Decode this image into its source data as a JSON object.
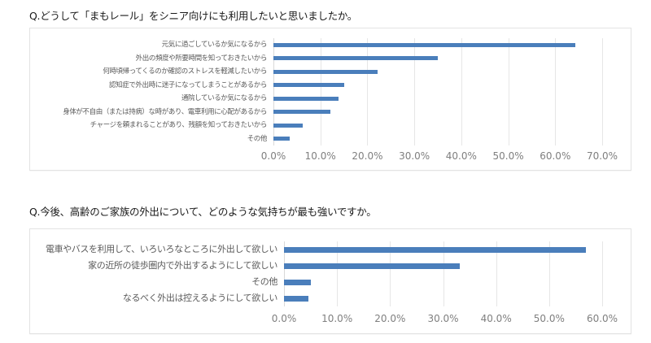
{
  "questions": {
    "q1": "Q.どうして「まもレール」をシニア向けにも利用したいと思いましたか。",
    "q2": "Q.今後、高齢のご家族の外出について、どのような気持ちが最も強いですか。"
  },
  "colors": {
    "bar": "#4a7ebb",
    "grid": "#e6e6e6",
    "tick_text": "#7f7f7f",
    "label_text": "#595959"
  },
  "chart_data": [
    {
      "type": "bar",
      "orientation": "horizontal",
      "title": "Q.どうして「まもレール」をシニア向けにも利用したいと思いましたか。",
      "categories": [
        "元気に過ごしているか気になるから",
        "外出の頻度や所要時間を知っておきたいから",
        "何時頃帰ってくるのか確認のストレスを軽減したいから",
        "認知症で外出時に迷子になってしまうことがあるから",
        "通院しているか気になるから",
        "身体が不自由（または持病）な時があり、電車利用に心配があるから",
        "チャージを頼まれることがあり、残額を知っておきたいから",
        "その他"
      ],
      "values": [
        64.2,
        35.0,
        22.1,
        15.1,
        13.9,
        12.2,
        6.3,
        3.5
      ],
      "xlabel": "",
      "ylabel": "",
      "xlim": [
        0,
        70
      ],
      "ticks": [
        "0.0%",
        "10.0%",
        "20.0%",
        "30.0%",
        "40.0%",
        "50.0%",
        "60.0%",
        "70.0%"
      ],
      "grid": true,
      "legend": "none"
    },
    {
      "type": "bar",
      "orientation": "horizontal",
      "title": "Q.今後、高齢のご家族の外出について、どのような気持ちが最も強いですか。",
      "categories": [
        "電車やバスを利用して、いろいろなところに外出して欲しい",
        "家の近所の徒歩圏内で外出するようにして欲しい",
        "その他",
        "なるべく外出は控えるようにして欲しい"
      ],
      "values": [
        57.0,
        33.1,
        5.1,
        4.6
      ],
      "xlabel": "",
      "ylabel": "",
      "xlim": [
        0,
        60
      ],
      "ticks": [
        "0.0%",
        "10.0%",
        "20.0%",
        "30.0%",
        "40.0%",
        "50.0%",
        "60.0%"
      ],
      "grid": true,
      "legend": "none"
    }
  ]
}
